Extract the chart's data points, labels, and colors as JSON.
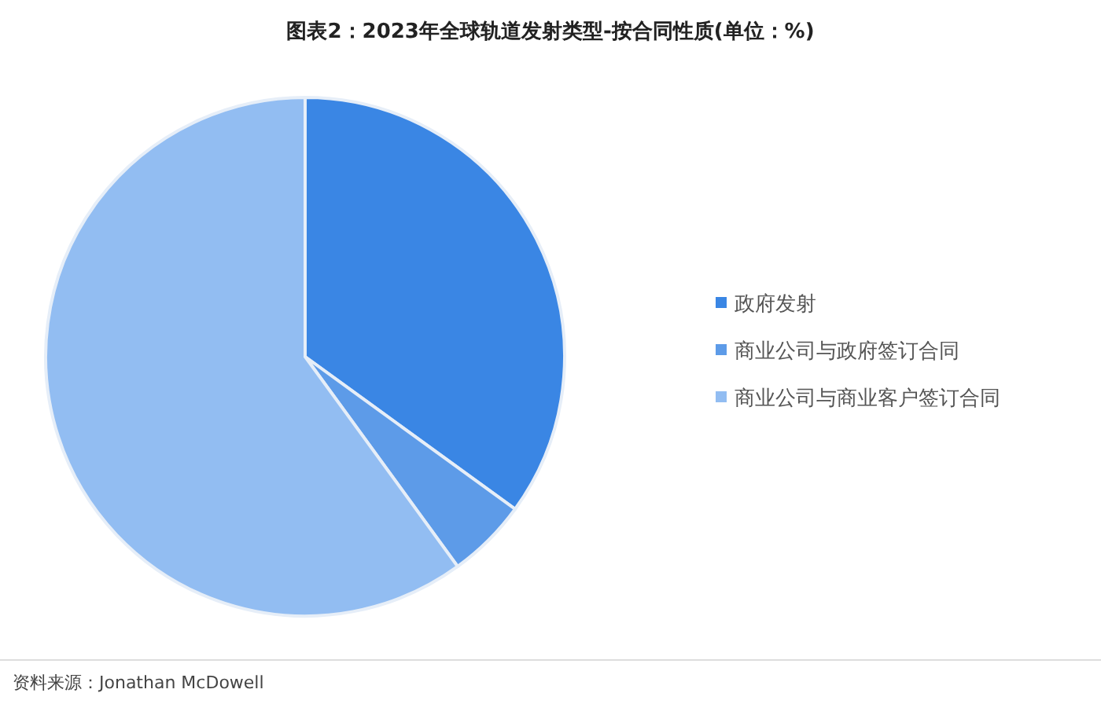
{
  "chart_data": {
    "type": "pie",
    "title": "图表2：2023年全球轨道发射类型-按合同性质(单位：%)",
    "categories": [
      "政府发射",
      "商业公司与政府签订合同",
      "商业公司与商业客户签订合同"
    ],
    "values": [
      35,
      5,
      60
    ],
    "colors": [
      "#3a86e4",
      "#5d9be8",
      "#92bdf2"
    ],
    "legend": "right",
    "annotations": [
      "资料来源：Jonathan McDowell"
    ]
  }
}
